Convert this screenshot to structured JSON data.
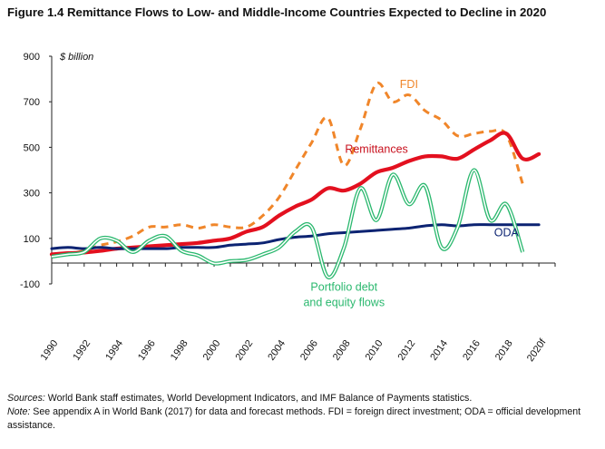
{
  "chart_data": {
    "type": "line",
    "title": "Figure 1.4 Remittance Flows to Low- and Middle-Income Countries Expected to Decline in 2020",
    "ylabel": "$ billion",
    "xlabel": "",
    "ylim": [
      -100,
      900
    ],
    "yticks": [
      -100,
      100,
      300,
      500,
      700,
      900
    ],
    "grid": false,
    "x": [
      1990,
      1991,
      1992,
      1993,
      1994,
      1995,
      1996,
      1997,
      1998,
      1999,
      2000,
      2001,
      2002,
      2003,
      2004,
      2005,
      2006,
      2007,
      2008,
      2009,
      2010,
      2011,
      2012,
      2013,
      2014,
      2015,
      2016,
      2017,
      2018,
      2019,
      2020,
      2021
    ],
    "xtick_values": [
      1990,
      1992,
      1994,
      1996,
      1998,
      2000,
      2002,
      2004,
      2006,
      2008,
      2010,
      2012,
      2014,
      2016,
      2018,
      2020
    ],
    "xtick_labels": [
      "1990",
      "1992",
      "1994",
      "1996",
      "1998",
      "2000",
      "2002",
      "2004",
      "2006",
      "2008",
      "2010",
      "2012",
      "2014",
      "2016",
      "2018",
      "2020f"
    ],
    "series": [
      {
        "name": "FDI",
        "color": "#f0862a",
        "dash": true,
        "values": [
          30,
          35,
          45,
          70,
          85,
          110,
          150,
          150,
          160,
          145,
          160,
          150,
          150,
          200,
          280,
          400,
          520,
          630,
          420,
          580,
          780,
          700,
          730,
          660,
          620,
          550,
          560,
          570,
          555,
          340,
          null,
          null
        ]
      },
      {
        "name": "Remittances",
        "color": "#e3101f",
        "dash": false,
        "values": [
          30,
          35,
          38,
          45,
          55,
          60,
          65,
          70,
          75,
          80,
          90,
          100,
          130,
          150,
          200,
          240,
          270,
          320,
          310,
          340,
          390,
          410,
          440,
          460,
          460,
          450,
          490,
          530,
          560,
          450,
          470,
          null
        ]
      },
      {
        "name": "ODA",
        "color": "#0c2372",
        "dash": false,
        "values": [
          55,
          60,
          55,
          60,
          55,
          55,
          55,
          55,
          60,
          60,
          60,
          70,
          75,
          80,
          95,
          105,
          110,
          120,
          125,
          130,
          135,
          140,
          145,
          155,
          160,
          155,
          160,
          160,
          160,
          160,
          160,
          null
        ]
      },
      {
        "name": "Portfolio debt and equity flows",
        "color": "#2ab86e",
        "dash": false,
        "values": [
          20,
          30,
          40,
          100,
          90,
          40,
          90,
          110,
          45,
          25,
          -10,
          0,
          5,
          30,
          60,
          130,
          150,
          -70,
          60,
          320,
          180,
          380,
          250,
          330,
          60,
          150,
          400,
          180,
          250,
          40,
          null,
          null
        ]
      }
    ],
    "annotations": [
      {
        "text": "FDI",
        "color": "#f0862a",
        "x": 2012,
        "y": 760
      },
      {
        "text": "Remittances",
        "color": "#c8111e",
        "x": 2010,
        "y": 475
      },
      {
        "text": "ODA",
        "color": "#0c2372",
        "x": 2018,
        "y": 110
      },
      {
        "text": "Portfolio debt",
        "color": "#2ab86e",
        "x": 2008,
        "y": -130
      },
      {
        "text": "and equity flows",
        "color": "#2ab86e",
        "x": 2008,
        "y": -197
      }
    ]
  },
  "footer": {
    "sources_label": "Sources:",
    "sources_text": " World Bank staff estimates, World Development Indicators, and IMF Balance of Payments statistics.",
    "note_label": "Note:",
    "note_text": " See appendix A in World Bank (2017) for data and forecast methods. FDI = foreign direct investment; ODA = official development assistance."
  }
}
